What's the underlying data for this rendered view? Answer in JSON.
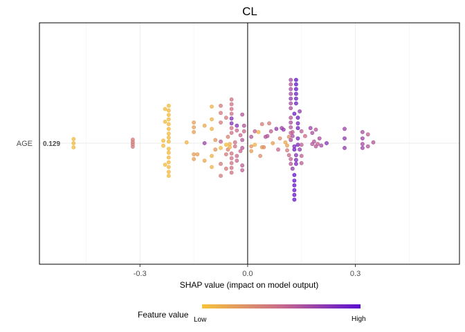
{
  "chart_data": {
    "type": "scatter",
    "subtype": "shap-beeswarm",
    "title": "CL",
    "xlabel": "SHAP value (impact on model output)",
    "xlim": [
      -0.58,
      0.59
    ],
    "x_ticks": [
      -0.3,
      0.0,
      0.3
    ],
    "x_tick_labels": [
      "-0.3",
      "0.0",
      "0.3"
    ],
    "grid": true,
    "features": [
      {
        "name": "AGE",
        "mean_abs_shap": "0.129"
      }
    ],
    "color_scale": {
      "label": "Feature value",
      "low_label": "Low",
      "high_label": "High",
      "low_color": "#F7C23A",
      "mid_color": "#C86B8C",
      "high_color": "#5A0ED0"
    },
    "points": [
      {
        "x": -0.485,
        "y": 0.26,
        "v": 0.05
      },
      {
        "x": -0.485,
        "y": 0.0,
        "v": 0.05
      },
      {
        "x": -0.485,
        "y": -0.26,
        "v": 0.05
      },
      {
        "x": -0.32,
        "y": 0.22,
        "v": 0.4
      },
      {
        "x": -0.32,
        "y": 0.07,
        "v": 0.4
      },
      {
        "x": -0.32,
        "y": -0.07,
        "v": 0.4
      },
      {
        "x": -0.32,
        "y": -0.22,
        "v": 0.4
      },
      {
        "x": -0.235,
        "y": 0.16,
        "v": 0.05
      },
      {
        "x": -0.235,
        "y": -0.16,
        "v": 0.05
      },
      {
        "x": -0.22,
        "y": 2.35,
        "v": 0.05
      },
      {
        "x": -0.22,
        "y": 2.05,
        "v": 0.05
      },
      {
        "x": -0.22,
        "y": 1.78,
        "v": 0.05
      },
      {
        "x": -0.22,
        "y": 1.5,
        "v": 0.05
      },
      {
        "x": -0.22,
        "y": 1.2,
        "v": 0.05
      },
      {
        "x": -0.22,
        "y": 0.9,
        "v": 0.05
      },
      {
        "x": -0.22,
        "y": 0.6,
        "v": 0.05
      },
      {
        "x": -0.22,
        "y": 0.35,
        "v": 0.05
      },
      {
        "x": -0.22,
        "y": 0.1,
        "v": 0.05
      },
      {
        "x": -0.22,
        "y": -0.35,
        "v": 0.05
      },
      {
        "x": -0.22,
        "y": -0.6,
        "v": 0.05
      },
      {
        "x": -0.22,
        "y": -0.9,
        "v": 0.05
      },
      {
        "x": -0.22,
        "y": -1.2,
        "v": 0.05
      },
      {
        "x": -0.22,
        "y": -1.5,
        "v": 0.05
      },
      {
        "x": -0.22,
        "y": -1.8,
        "v": 0.05
      },
      {
        "x": -0.22,
        "y": -2.05,
        "v": 0.05
      },
      {
        "x": -0.23,
        "y": 2.15,
        "v": 0.05
      },
      {
        "x": -0.23,
        "y": 1.35,
        "v": 0.05
      },
      {
        "x": -0.23,
        "y": -1.35,
        "v": 0.05
      },
      {
        "x": -0.17,
        "y": 0.05,
        "v": 0.1
      },
      {
        "x": -0.15,
        "y": 1.3,
        "v": 0.2
      },
      {
        "x": -0.15,
        "y": 1.0,
        "v": 0.2
      },
      {
        "x": -0.15,
        "y": 0.7,
        "v": 0.2
      },
      {
        "x": -0.15,
        "y": -0.7,
        "v": 0.2
      },
      {
        "x": -0.15,
        "y": -1.0,
        "v": 0.2
      },
      {
        "x": -0.14,
        "y": -0.7,
        "v": 0.2
      },
      {
        "x": -0.12,
        "y": 1.1,
        "v": 0.15
      },
      {
        "x": -0.12,
        "y": 0.0,
        "v": 0.7
      },
      {
        "x": -0.12,
        "y": -1.1,
        "v": 0.15
      },
      {
        "x": -0.1,
        "y": 2.3,
        "v": 0.1
      },
      {
        "x": -0.1,
        "y": 1.5,
        "v": 0.1
      },
      {
        "x": -0.1,
        "y": 0.9,
        "v": 0.1
      },
      {
        "x": -0.1,
        "y": -0.8,
        "v": 0.1
      },
      {
        "x": -0.1,
        "y": -1.5,
        "v": 0.1
      },
      {
        "x": -0.09,
        "y": 0.2,
        "v": 0.25
      },
      {
        "x": -0.09,
        "y": -0.4,
        "v": 0.25
      },
      {
        "x": -0.075,
        "y": 0.1,
        "v": 0.55
      },
      {
        "x": -0.075,
        "y": -0.3,
        "v": 0.05
      },
      {
        "x": -0.075,
        "y": 1.3,
        "v": 0.4
      },
      {
        "x": -0.075,
        "y": -1.3,
        "v": 0.4
      },
      {
        "x": -0.075,
        "y": 1.9,
        "v": 0.4
      },
      {
        "x": -0.075,
        "y": -2.05,
        "v": 0.4
      },
      {
        "x": -0.075,
        "y": 2.35,
        "v": 0.4
      },
      {
        "x": -0.06,
        "y": -0.7,
        "v": 0.4
      },
      {
        "x": -0.06,
        "y": 1.6,
        "v": 0.4
      },
      {
        "x": -0.06,
        "y": -1.6,
        "v": 0.4
      },
      {
        "x": -0.06,
        "y": -0.1,
        "v": 0.05
      },
      {
        "x": -0.055,
        "y": 0.4,
        "v": 0.35
      },
      {
        "x": -0.055,
        "y": -0.4,
        "v": 0.35
      },
      {
        "x": -0.045,
        "y": 2.75,
        "v": 0.45
      },
      {
        "x": -0.045,
        "y": 2.45,
        "v": 0.45
      },
      {
        "x": -0.045,
        "y": 2.15,
        "v": 0.45
      },
      {
        "x": -0.045,
        "y": 1.85,
        "v": 0.45
      },
      {
        "x": -0.045,
        "y": 1.55,
        "v": 0.8
      },
      {
        "x": -0.045,
        "y": 1.25,
        "v": 0.8
      },
      {
        "x": -0.045,
        "y": 0.95,
        "v": 0.45
      },
      {
        "x": -0.045,
        "y": 0.65,
        "v": 0.45
      },
      {
        "x": -0.045,
        "y": -0.65,
        "v": 0.45
      },
      {
        "x": -0.045,
        "y": -0.95,
        "v": 0.45
      },
      {
        "x": -0.045,
        "y": -1.25,
        "v": 0.45
      },
      {
        "x": -0.045,
        "y": -1.55,
        "v": 0.45
      },
      {
        "x": -0.045,
        "y": -1.85,
        "v": 0.45
      },
      {
        "x": -0.05,
        "y": -0.05,
        "v": 0.1
      },
      {
        "x": -0.05,
        "y": -0.25,
        "v": 0.1
      },
      {
        "x": -0.035,
        "y": 0.05,
        "v": 0.45
      },
      {
        "x": -0.035,
        "y": -0.2,
        "v": 0.45
      },
      {
        "x": -0.03,
        "y": 1.1,
        "v": 0.8
      },
      {
        "x": -0.03,
        "y": -1.1,
        "v": 0.5
      },
      {
        "x": -0.03,
        "y": 0.8,
        "v": 0.5
      },
      {
        "x": -0.03,
        "y": -0.8,
        "v": 0.5
      },
      {
        "x": -0.02,
        "y": 0.5,
        "v": 0.5
      },
      {
        "x": -0.02,
        "y": -0.5,
        "v": 0.5
      },
      {
        "x": -0.015,
        "y": 1.8,
        "v": 0.6
      },
      {
        "x": -0.015,
        "y": -1.4,
        "v": 0.55
      },
      {
        "x": -0.015,
        "y": -1.7,
        "v": 0.55
      },
      {
        "x": -0.015,
        "y": 0.2,
        "v": 0.6
      },
      {
        "x": -0.015,
        "y": -0.3,
        "v": 0.6
      },
      {
        "x": -0.01,
        "y": 1.1,
        "v": 0.6
      },
      {
        "x": -0.01,
        "y": 0.75,
        "v": 0.5
      },
      {
        "x": 0.01,
        "y": -0.2,
        "v": 0.25
      },
      {
        "x": 0.01,
        "y": 0.4,
        "v": 0.6
      },
      {
        "x": 0.01,
        "y": -0.5,
        "v": 0.2
      },
      {
        "x": 0.02,
        "y": 0.75,
        "v": 0.55
      },
      {
        "x": 0.02,
        "y": -0.1,
        "v": 0.1
      },
      {
        "x": 0.03,
        "y": 0.7,
        "v": 0.1
      },
      {
        "x": 0.035,
        "y": -0.8,
        "v": 0.3
      },
      {
        "x": 0.04,
        "y": -0.25,
        "v": 0.2
      },
      {
        "x": 0.045,
        "y": -0.25,
        "v": 0.3
      },
      {
        "x": 0.05,
        "y": 0.4,
        "v": 0.6
      },
      {
        "x": 0.04,
        "y": 1.2,
        "v": 0.4
      },
      {
        "x": 0.055,
        "y": 0.45,
        "v": 0.6
      },
      {
        "x": 0.06,
        "y": 1.25,
        "v": 0.4
      },
      {
        "x": 0.065,
        "y": 0.75,
        "v": 0.55
      },
      {
        "x": 0.07,
        "y": 0.0,
        "v": 0.2
      },
      {
        "x": 0.08,
        "y": 0.9,
        "v": 0.75
      },
      {
        "x": 0.085,
        "y": -0.4,
        "v": 0.5
      },
      {
        "x": 0.09,
        "y": 0.3,
        "v": 0.3
      },
      {
        "x": 0.095,
        "y": 0.95,
        "v": 0.7
      },
      {
        "x": 0.1,
        "y": 0.85,
        "v": 0.75
      },
      {
        "x": 0.105,
        "y": 0.05,
        "v": 0.15
      },
      {
        "x": 0.11,
        "y": -0.15,
        "v": 0.2
      },
      {
        "x": 0.11,
        "y": -0.45,
        "v": 0.4
      },
      {
        "x": 0.115,
        "y": -0.75,
        "v": 0.5
      },
      {
        "x": 0.115,
        "y": 0.4,
        "v": 0.3
      },
      {
        "x": 0.12,
        "y": 0.2,
        "v": 0.65
      },
      {
        "x": 0.12,
        "y": 0.65,
        "v": 0.55
      },
      {
        "x": 0.12,
        "y": 1.0,
        "v": 0.6
      },
      {
        "x": 0.12,
        "y": 1.3,
        "v": 0.65
      },
      {
        "x": 0.12,
        "y": 1.6,
        "v": 0.6
      },
      {
        "x": 0.12,
        "y": 2.2,
        "v": 0.65
      },
      {
        "x": 0.12,
        "y": 2.5,
        "v": 0.65
      },
      {
        "x": 0.12,
        "y": 2.8,
        "v": 0.75
      },
      {
        "x": 0.12,
        "y": 3.1,
        "v": 0.65
      },
      {
        "x": 0.12,
        "y": 3.4,
        "v": 0.65
      },
      {
        "x": 0.12,
        "y": 3.7,
        "v": 0.6
      },
      {
        "x": 0.12,
        "y": 3.98,
        "v": 0.65
      },
      {
        "x": 0.12,
        "y": -1.0,
        "v": 0.55
      },
      {
        "x": 0.12,
        "y": -1.3,
        "v": 0.6
      },
      {
        "x": 0.125,
        "y": -1.6,
        "v": 0.75
      },
      {
        "x": 0.125,
        "y": 0.45,
        "v": 0.65
      },
      {
        "x": 0.125,
        "y": 0.7,
        "v": 0.55
      },
      {
        "x": 0.13,
        "y": 1.85,
        "v": 0.9
      },
      {
        "x": 0.13,
        "y": -0.4,
        "v": 0.9
      },
      {
        "x": 0.13,
        "y": -0.2,
        "v": 0.85
      },
      {
        "x": 0.13,
        "y": -2.0,
        "v": 0.95
      },
      {
        "x": 0.13,
        "y": -2.35,
        "v": 0.95
      },
      {
        "x": 0.13,
        "y": -2.65,
        "v": 0.95
      },
      {
        "x": 0.13,
        "y": -2.95,
        "v": 0.95
      },
      {
        "x": 0.13,
        "y": -3.25,
        "v": 0.95
      },
      {
        "x": 0.13,
        "y": -3.55,
        "v": 0.95
      },
      {
        "x": 0.135,
        "y": 3.98,
        "v": 0.95
      },
      {
        "x": 0.135,
        "y": 3.7,
        "v": 0.95
      },
      {
        "x": 0.135,
        "y": 3.4,
        "v": 0.95
      },
      {
        "x": 0.135,
        "y": 3.1,
        "v": 0.9
      },
      {
        "x": 0.135,
        "y": 2.8,
        "v": 0.9
      },
      {
        "x": 0.135,
        "y": 2.5,
        "v": 0.9
      },
      {
        "x": 0.135,
        "y": -0.75,
        "v": 0.8
      },
      {
        "x": 0.135,
        "y": -1.05,
        "v": 0.85
      },
      {
        "x": 0.135,
        "y": -1.3,
        "v": 0.85
      },
      {
        "x": 0.14,
        "y": 1.6,
        "v": 0.9
      },
      {
        "x": 0.14,
        "y": 1.25,
        "v": 0.85
      },
      {
        "x": 0.14,
        "y": 0.95,
        "v": 0.9
      },
      {
        "x": 0.14,
        "y": 0.3,
        "v": 0.85
      },
      {
        "x": 0.14,
        "y": -0.1,
        "v": 0.85
      },
      {
        "x": 0.145,
        "y": 2.0,
        "v": 0.75
      },
      {
        "x": 0.145,
        "y": -0.4,
        "v": 0.75
      },
      {
        "x": 0.15,
        "y": 0.75,
        "v": 0.55
      },
      {
        "x": 0.15,
        "y": -0.1,
        "v": 0.55
      },
      {
        "x": 0.15,
        "y": -0.8,
        "v": 0.55
      },
      {
        "x": 0.15,
        "y": -1.25,
        "v": 0.55
      },
      {
        "x": 0.16,
        "y": 0.45,
        "v": 0.5
      },
      {
        "x": 0.175,
        "y": 0.95,
        "v": 0.7
      },
      {
        "x": 0.18,
        "y": 0.65,
        "v": 0.65
      },
      {
        "x": 0.18,
        "y": -0.05,
        "v": 0.6
      },
      {
        "x": 0.19,
        "y": -0.2,
        "v": 0.6
      },
      {
        "x": 0.185,
        "y": 0.1,
        "v": 0.6
      },
      {
        "x": 0.19,
        "y": 0.85,
        "v": 0.6
      },
      {
        "x": 0.195,
        "y": -0.05,
        "v": 0.55
      },
      {
        "x": 0.2,
        "y": 0.3,
        "v": 0.65
      },
      {
        "x": 0.205,
        "y": -0.15,
        "v": 0.65
      },
      {
        "x": 0.22,
        "y": 0.0,
        "v": 0.8
      },
      {
        "x": 0.27,
        "y": 0.9,
        "v": 0.7
      },
      {
        "x": 0.27,
        "y": 0.3,
        "v": 0.75
      },
      {
        "x": 0.27,
        "y": -0.3,
        "v": 0.75
      },
      {
        "x": 0.32,
        "y": 0.7,
        "v": 0.65
      },
      {
        "x": 0.32,
        "y": 0.3,
        "v": 0.7
      },
      {
        "x": 0.32,
        "y": -0.05,
        "v": 0.65
      },
      {
        "x": 0.32,
        "y": -0.3,
        "v": 0.7
      },
      {
        "x": 0.335,
        "y": 0.55,
        "v": 0.55
      },
      {
        "x": 0.335,
        "y": -0.2,
        "v": 0.6
      },
      {
        "x": 0.35,
        "y": 0.05,
        "v": 0.6
      }
    ]
  }
}
